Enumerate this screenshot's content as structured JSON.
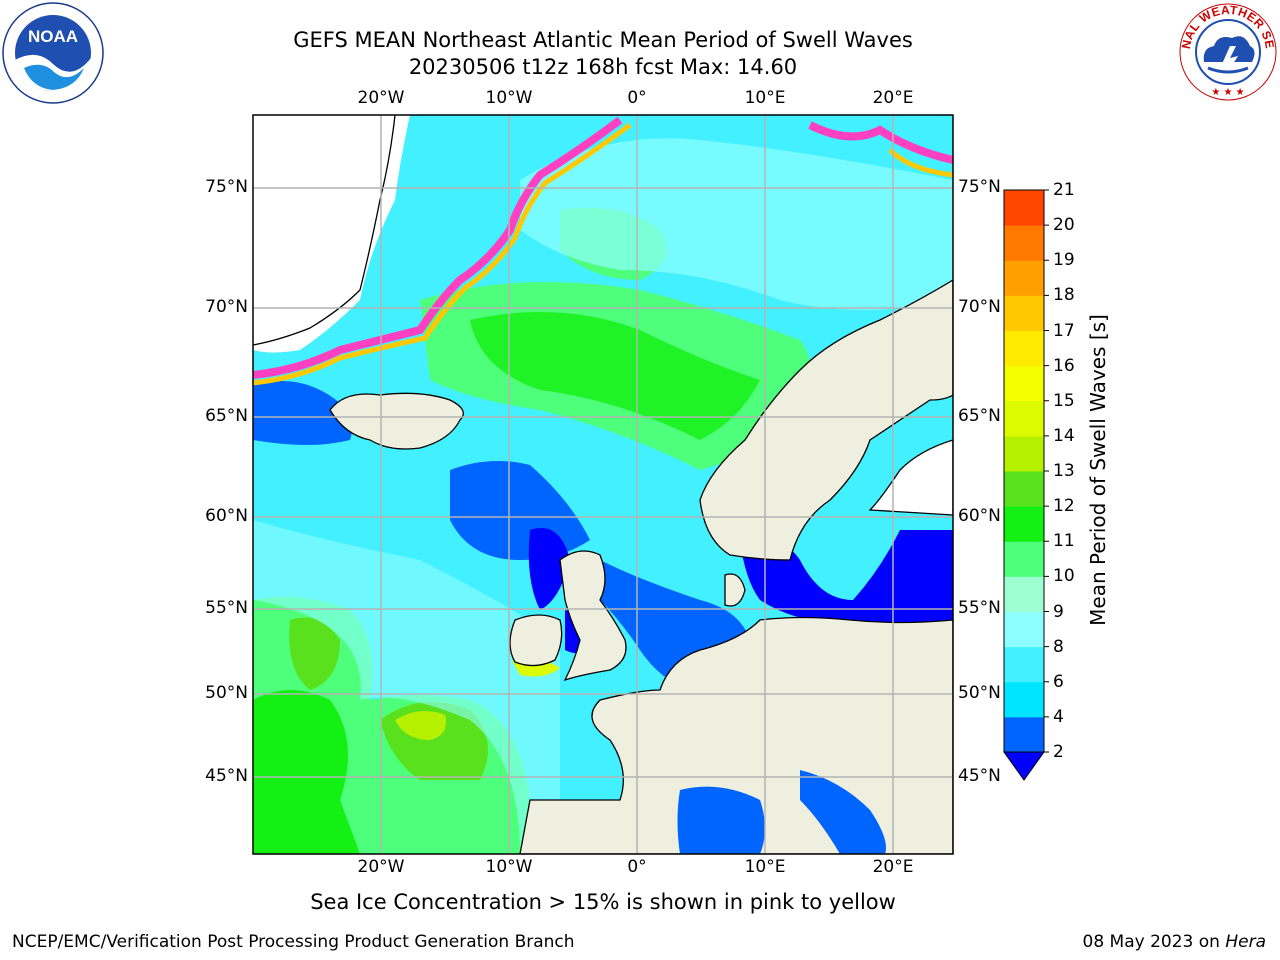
{
  "title_line1": "GEFS MEAN Northeast Atlantic Mean Period of Swell Waves",
  "title_line2": "20230506 t12z 168h fcst   Max: 14.60",
  "note": "Sea Ice Concentration > 15% is shown in pink to yellow",
  "footer_left": "NCEP/EMC/Verification Post Processing Product Generation Branch",
  "footer_date": "08 May 2023 on",
  "footer_machine": "Hera",
  "logos": {
    "left": "NOAA",
    "right": "NATIONAL WEATHER SERVICE"
  },
  "lon_labels": [
    {
      "lon": -20,
      "text": "20°W"
    },
    {
      "lon": -10,
      "text": "10°W"
    },
    {
      "lon": 0,
      "text": "0°"
    },
    {
      "lon": 10,
      "text": "10°E"
    },
    {
      "lon": 20,
      "text": "20°E"
    }
  ],
  "lat_labels": [
    {
      "lat": 75,
      "text": "75°N"
    },
    {
      "lat": 70,
      "text": "70°N"
    },
    {
      "lat": 65,
      "text": "65°N"
    },
    {
      "lat": 60,
      "text": "60°N"
    },
    {
      "lat": 55,
      "text": "55°N"
    },
    {
      "lat": 50,
      "text": "50°N"
    },
    {
      "lat": 45,
      "text": "45°N"
    }
  ],
  "colorbar": {
    "title": "Mean Period of Swell Waves [s]",
    "ticks": [
      "2",
      "4",
      "6",
      "8",
      "9",
      "10",
      "11",
      "12",
      "13",
      "14",
      "15",
      "16",
      "17",
      "18",
      "19",
      "20",
      "21"
    ],
    "colors": [
      "#0064ff",
      "#00e5ff",
      "#43f0ff",
      "#8dffff",
      "#9effd2",
      "#4dff7a",
      "#14f014",
      "#5ae11e",
      "#b4f000",
      "#dcfa00",
      "#f5ff00",
      "#ffeb00",
      "#ffc800",
      "#ffa000",
      "#ff7800",
      "#ff4600",
      "#ff0000"
    ],
    "under_color": "#0000ff"
  },
  "colors": {
    "land": "#efefdf",
    "coast": "#000000",
    "grid": "#b4b4b4"
  }
}
